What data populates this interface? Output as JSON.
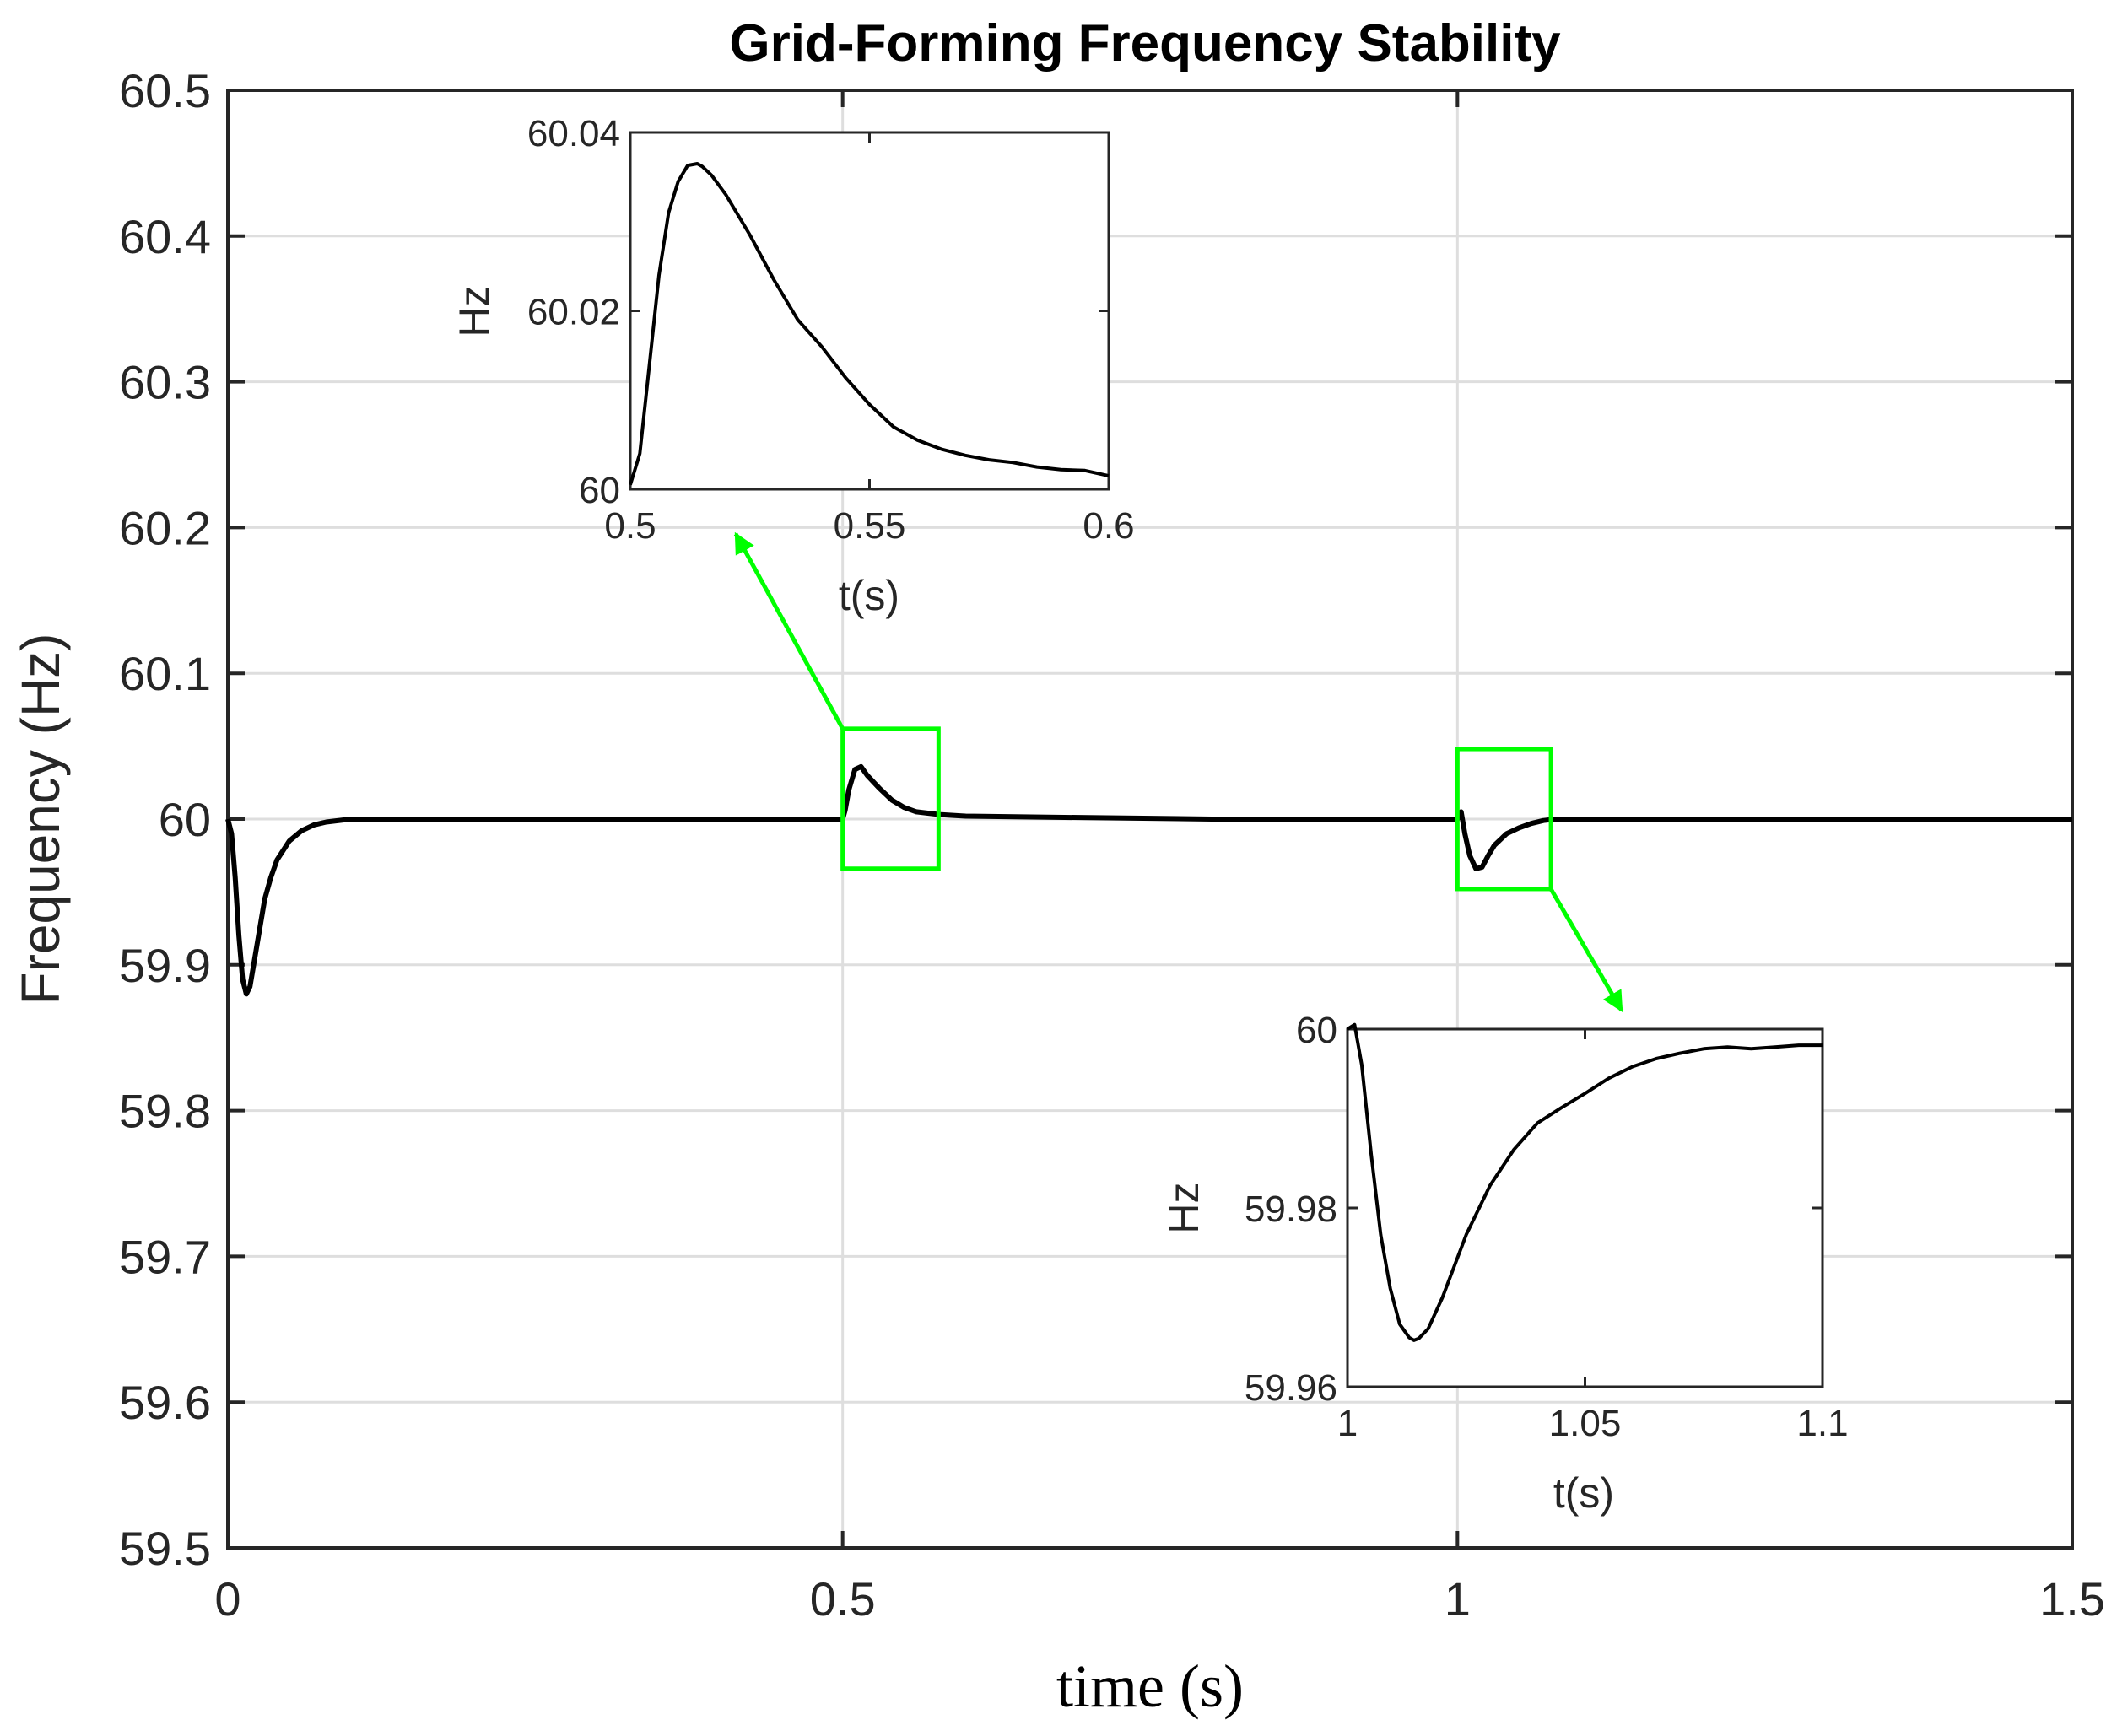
{
  "chart_data": [
    {
      "id": "main",
      "type": "line",
      "title": "Grid-Forming Frequency Stability",
      "xlabel": "time (s)",
      "ylabel": "Frequency (Hz)",
      "xlim": [
        0,
        1.5
      ],
      "ylim": [
        59.5,
        60.5
      ],
      "xticks": [
        "0",
        "0.5",
        "1",
        "1.5"
      ],
      "yticks": [
        "59.5",
        "59.6",
        "59.7",
        "59.8",
        "59.9",
        "60",
        "60.1",
        "60.2",
        "60.3",
        "60.4",
        "60.5"
      ],
      "grid": true,
      "line_color": "#000000",
      "series": [
        {
          "x": [
            0,
            0.003,
            0.006,
            0.009,
            0.012,
            0.015,
            0.018,
            0.021,
            0.025,
            0.03,
            0.035,
            0.04,
            0.05,
            0.06,
            0.07,
            0.08,
            0.1,
            0.15,
            0.2,
            0.3,
            0.4,
            0.5,
            0.502,
            0.505,
            0.51,
            0.515,
            0.52,
            0.53,
            0.54,
            0.55,
            0.56,
            0.57,
            0.58,
            0.6,
            0.7,
            0.8,
            0.9,
            1.0,
            1.003,
            1.006,
            1.01,
            1.015,
            1.02,
            1.025,
            1.03,
            1.04,
            1.05,
            1.06,
            1.07,
            1.08,
            1.1,
            1.2,
            1.3,
            1.4,
            1.5
          ],
          "y": [
            60.0,
            59.99,
            59.96,
            59.92,
            59.89,
            59.88,
            59.885,
            59.9,
            59.92,
            59.945,
            59.96,
            59.972,
            59.985,
            59.992,
            59.996,
            59.998,
            60.0,
            60.0,
            60.0,
            60.0,
            60.0,
            60.0,
            60.006,
            60.02,
            60.034,
            60.036,
            60.03,
            60.021,
            60.013,
            60.008,
            60.005,
            60.004,
            60.003,
            60.002,
            60.001,
            60.0,
            60.0,
            60.0,
            60.005,
            59.99,
            59.975,
            59.966,
            59.967,
            59.975,
            59.982,
            59.99,
            59.994,
            59.997,
            59.999,
            60.0,
            60.0,
            60.0,
            60.0,
            60.0,
            60.0
          ]
        }
      ]
    },
    {
      "id": "inset-1",
      "type": "line",
      "xlabel": "t(s)",
      "ylabel": "Hz",
      "xlim": [
        0.5,
        0.6
      ],
      "ylim": [
        60,
        60.04
      ],
      "xticks": [
        "0.5",
        "0.55",
        "0.6"
      ],
      "yticks": [
        "60",
        "60.02",
        "60.04"
      ],
      "series": [
        {
          "x": [
            0.5,
            0.502,
            0.504,
            0.506,
            0.508,
            0.51,
            0.512,
            0.514,
            0.515,
            0.517,
            0.52,
            0.525,
            0.53,
            0.535,
            0.54,
            0.545,
            0.55,
            0.555,
            0.56,
            0.565,
            0.57,
            0.575,
            0.58,
            0.585,
            0.59,
            0.595,
            0.6
          ],
          "y": [
            60.0005,
            60.004,
            60.014,
            60.024,
            60.031,
            60.0345,
            60.0363,
            60.0365,
            60.0362,
            60.0352,
            60.033,
            60.0285,
            60.0235,
            60.019,
            60.016,
            60.0125,
            60.0095,
            60.007,
            60.0055,
            60.0045,
            60.0038,
            60.0033,
            60.003,
            60.0025,
            60.0022,
            60.0021,
            60.0015
          ]
        }
      ]
    },
    {
      "id": "inset-2",
      "type": "line",
      "xlabel": "t(s)",
      "ylabel": "Hz",
      "xlim": [
        1,
        1.1
      ],
      "ylim": [
        59.96,
        60.0
      ],
      "xticks": [
        "1",
        "1.05",
        "1.1"
      ],
      "yticks": [
        "59.96",
        "59.98",
        "60"
      ],
      "series": [
        {
          "x": [
            1.0,
            1.0015,
            1.003,
            1.005,
            1.007,
            1.009,
            1.011,
            1.013,
            1.014,
            1.015,
            1.017,
            1.02,
            1.025,
            1.03,
            1.035,
            1.04,
            1.045,
            1.05,
            1.055,
            1.06,
            1.065,
            1.07,
            1.075,
            1.08,
            1.085,
            1.09,
            1.095,
            1.1
          ],
          "y": [
            60.0,
            60.0005,
            59.996,
            59.986,
            59.977,
            59.971,
            59.967,
            59.9655,
            59.9652,
            59.9654,
            59.9665,
            59.97,
            59.977,
            59.9825,
            59.9865,
            59.9895,
            59.9912,
            59.9928,
            59.9945,
            59.9958,
            59.9967,
            59.9973,
            59.9978,
            59.998,
            59.9978,
            59.998,
            59.9982,
            59.9982
          ]
        }
      ]
    }
  ],
  "zoom_box_color": "#00ff00"
}
